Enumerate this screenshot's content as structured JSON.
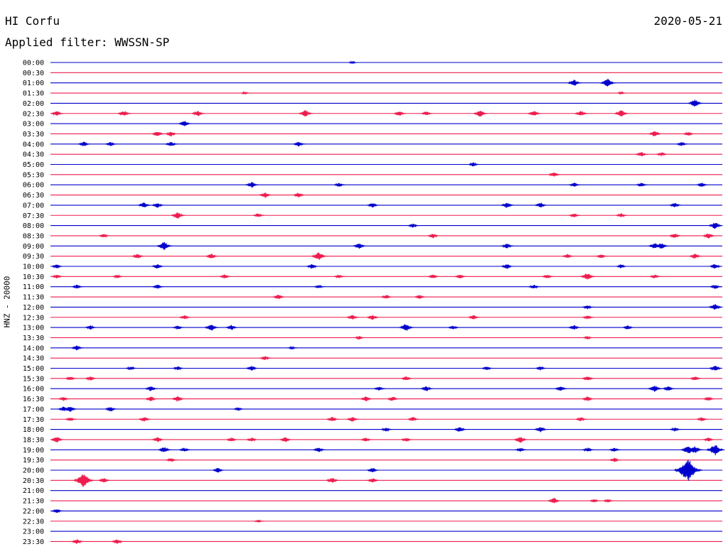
{
  "header": {
    "station": "HI Corfu",
    "date": "2020-05-21",
    "filter_label": "Applied filter:",
    "filter_name": "WWSSN-SP"
  },
  "channel_label": "HNZ - 20000",
  "colors": {
    "even_row": "#0000cc",
    "odd_row": "#ee1c4e"
  },
  "chart_data": {
    "type": "line",
    "title": "",
    "row_times": [
      "00:00",
      "00:30",
      "01:00",
      "01:30",
      "02:00",
      "02:30",
      "03:00",
      "03:30",
      "04:00",
      "04:30",
      "05:00",
      "05:30",
      "06:00",
      "06:30",
      "07:00",
      "07:30",
      "08:00",
      "08:30",
      "09:00",
      "09:30",
      "10:00",
      "10:30",
      "11:00",
      "11:30",
      "12:00",
      "12:30",
      "13:00",
      "13:30",
      "14:00",
      "14:30",
      "15:00",
      "15:30",
      "16:00",
      "16:30",
      "17:00",
      "17:30",
      "18:00",
      "18:30",
      "19:00",
      "19:30",
      "20:00",
      "20:30",
      "21:00",
      "21:30",
      "22:00",
      "22:30",
      "23:00",
      "23:30"
    ],
    "row_minutes": 30,
    "events": [
      {
        "row": 0,
        "x": 0.45,
        "amp": 0.3
      },
      {
        "row": 2,
        "x": 0.78,
        "amp": 0.8
      },
      {
        "row": 2,
        "x": 0.83,
        "amp": 1.0
      },
      {
        "row": 3,
        "x": 0.29,
        "amp": 0.3
      },
      {
        "row": 3,
        "x": 0.85,
        "amp": 0.3
      },
      {
        "row": 4,
        "x": 0.96,
        "amp": 0.9
      },
      {
        "row": 5,
        "x": 0.01,
        "amp": 0.6
      },
      {
        "row": 5,
        "x": 0.11,
        "amp": 0.7
      },
      {
        "row": 5,
        "x": 0.22,
        "amp": 0.7
      },
      {
        "row": 5,
        "x": 0.38,
        "amp": 0.8
      },
      {
        "row": 5,
        "x": 0.52,
        "amp": 0.6
      },
      {
        "row": 5,
        "x": 0.56,
        "amp": 0.5
      },
      {
        "row": 5,
        "x": 0.64,
        "amp": 0.8
      },
      {
        "row": 5,
        "x": 0.72,
        "amp": 0.7
      },
      {
        "row": 5,
        "x": 0.79,
        "amp": 0.7
      },
      {
        "row": 5,
        "x": 0.85,
        "amp": 0.8
      },
      {
        "row": 6,
        "x": 0.2,
        "amp": 0.7
      },
      {
        "row": 7,
        "x": 0.16,
        "amp": 0.7
      },
      {
        "row": 7,
        "x": 0.18,
        "amp": 0.6
      },
      {
        "row": 7,
        "x": 0.9,
        "amp": 0.7
      },
      {
        "row": 7,
        "x": 0.95,
        "amp": 0.5
      },
      {
        "row": 8,
        "x": 0.05,
        "amp": 0.6
      },
      {
        "row": 8,
        "x": 0.09,
        "amp": 0.5
      },
      {
        "row": 8,
        "x": 0.18,
        "amp": 0.6
      },
      {
        "row": 8,
        "x": 0.37,
        "amp": 0.6
      },
      {
        "row": 8,
        "x": 0.94,
        "amp": 0.5
      },
      {
        "row": 9,
        "x": 0.88,
        "amp": 0.6
      },
      {
        "row": 9,
        "x": 0.91,
        "amp": 0.5
      },
      {
        "row": 10,
        "x": 0.63,
        "amp": 0.5
      },
      {
        "row": 11,
        "x": 0.75,
        "amp": 0.6
      },
      {
        "row": 12,
        "x": 0.3,
        "amp": 0.7
      },
      {
        "row": 12,
        "x": 0.43,
        "amp": 0.5
      },
      {
        "row": 12,
        "x": 0.78,
        "amp": 0.5
      },
      {
        "row": 12,
        "x": 0.88,
        "amp": 0.5
      },
      {
        "row": 12,
        "x": 0.97,
        "amp": 0.5
      },
      {
        "row": 13,
        "x": 0.32,
        "amp": 0.7
      },
      {
        "row": 13,
        "x": 0.37,
        "amp": 0.6
      },
      {
        "row": 14,
        "x": 0.14,
        "amp": 0.7
      },
      {
        "row": 14,
        "x": 0.16,
        "amp": 0.6
      },
      {
        "row": 14,
        "x": 0.48,
        "amp": 0.6
      },
      {
        "row": 14,
        "x": 0.68,
        "amp": 0.7
      },
      {
        "row": 14,
        "x": 0.73,
        "amp": 0.6
      },
      {
        "row": 14,
        "x": 0.93,
        "amp": 0.6
      },
      {
        "row": 15,
        "x": 0.19,
        "amp": 0.8
      },
      {
        "row": 15,
        "x": 0.31,
        "amp": 0.5
      },
      {
        "row": 15,
        "x": 0.78,
        "amp": 0.5
      },
      {
        "row": 15,
        "x": 0.85,
        "amp": 0.5
      },
      {
        "row": 16,
        "x": 0.54,
        "amp": 0.5
      },
      {
        "row": 16,
        "x": 0.99,
        "amp": 0.8
      },
      {
        "row": 17,
        "x": 0.08,
        "amp": 0.5
      },
      {
        "row": 17,
        "x": 0.57,
        "amp": 0.6
      },
      {
        "row": 17,
        "x": 0.93,
        "amp": 0.6
      },
      {
        "row": 17,
        "x": 0.98,
        "amp": 0.7
      },
      {
        "row": 18,
        "x": 0.17,
        "amp": 1.0
      },
      {
        "row": 18,
        "x": 0.46,
        "amp": 0.7
      },
      {
        "row": 18,
        "x": 0.68,
        "amp": 0.6
      },
      {
        "row": 18,
        "x": 0.9,
        "amp": 0.7
      },
      {
        "row": 18,
        "x": 0.91,
        "amp": 0.7
      },
      {
        "row": 19,
        "x": 0.13,
        "amp": 0.6
      },
      {
        "row": 19,
        "x": 0.24,
        "amp": 0.6
      },
      {
        "row": 19,
        "x": 0.4,
        "amp": 1.0
      },
      {
        "row": 19,
        "x": 0.77,
        "amp": 0.5
      },
      {
        "row": 19,
        "x": 0.82,
        "amp": 0.5
      },
      {
        "row": 19,
        "x": 0.96,
        "amp": 0.6
      },
      {
        "row": 20,
        "x": 0.01,
        "amp": 0.5
      },
      {
        "row": 20,
        "x": 0.16,
        "amp": 0.6
      },
      {
        "row": 20,
        "x": 0.39,
        "amp": 0.6
      },
      {
        "row": 20,
        "x": 0.68,
        "amp": 0.6
      },
      {
        "row": 20,
        "x": 0.85,
        "amp": 0.5
      },
      {
        "row": 20,
        "x": 0.99,
        "amp": 0.6
      },
      {
        "row": 21,
        "x": 0.01,
        "amp": 0.5
      },
      {
        "row": 21,
        "x": 0.1,
        "amp": 0.4
      },
      {
        "row": 21,
        "x": 0.26,
        "amp": 0.5
      },
      {
        "row": 21,
        "x": 0.43,
        "amp": 0.4
      },
      {
        "row": 21,
        "x": 0.57,
        "amp": 0.5
      },
      {
        "row": 21,
        "x": 0.61,
        "amp": 0.5
      },
      {
        "row": 21,
        "x": 0.74,
        "amp": 0.5
      },
      {
        "row": 21,
        "x": 0.8,
        "amp": 0.9
      },
      {
        "row": 21,
        "x": 0.9,
        "amp": 0.5
      },
      {
        "row": 22,
        "x": 0.04,
        "amp": 0.5
      },
      {
        "row": 22,
        "x": 0.16,
        "amp": 0.5
      },
      {
        "row": 22,
        "x": 0.4,
        "amp": 0.4
      },
      {
        "row": 22,
        "x": 0.72,
        "amp": 0.5
      },
      {
        "row": 22,
        "x": 0.99,
        "amp": 0.5
      },
      {
        "row": 23,
        "x": 0.34,
        "amp": 0.6
      },
      {
        "row": 23,
        "x": 0.5,
        "amp": 0.5
      },
      {
        "row": 23,
        "x": 0.55,
        "amp": 0.5
      },
      {
        "row": 24,
        "x": 0.8,
        "amp": 0.5
      },
      {
        "row": 24,
        "x": 0.99,
        "amp": 0.8
      },
      {
        "row": 25,
        "x": 0.2,
        "amp": 0.5
      },
      {
        "row": 25,
        "x": 0.45,
        "amp": 0.6
      },
      {
        "row": 25,
        "x": 0.48,
        "amp": 0.6
      },
      {
        "row": 25,
        "x": 0.63,
        "amp": 0.5
      },
      {
        "row": 25,
        "x": 0.8,
        "amp": 0.5
      },
      {
        "row": 26,
        "x": 0.06,
        "amp": 0.5
      },
      {
        "row": 26,
        "x": 0.19,
        "amp": 0.5
      },
      {
        "row": 26,
        "x": 0.24,
        "amp": 0.8
      },
      {
        "row": 26,
        "x": 0.27,
        "amp": 0.6
      },
      {
        "row": 26,
        "x": 0.53,
        "amp": 0.9
      },
      {
        "row": 26,
        "x": 0.6,
        "amp": 0.5
      },
      {
        "row": 26,
        "x": 0.78,
        "amp": 0.6
      },
      {
        "row": 26,
        "x": 0.86,
        "amp": 0.5
      },
      {
        "row": 27,
        "x": 0.46,
        "amp": 0.4
      },
      {
        "row": 27,
        "x": 0.8,
        "amp": 0.4
      },
      {
        "row": 28,
        "x": 0.04,
        "amp": 0.6
      },
      {
        "row": 28,
        "x": 0.36,
        "amp": 0.3
      },
      {
        "row": 29,
        "x": 0.32,
        "amp": 0.5
      },
      {
        "row": 30,
        "x": 0.12,
        "amp": 0.5
      },
      {
        "row": 30,
        "x": 0.19,
        "amp": 0.5
      },
      {
        "row": 30,
        "x": 0.3,
        "amp": 0.6
      },
      {
        "row": 30,
        "x": 0.65,
        "amp": 0.5
      },
      {
        "row": 30,
        "x": 0.73,
        "amp": 0.5
      },
      {
        "row": 30,
        "x": 0.99,
        "amp": 0.7
      },
      {
        "row": 31,
        "x": 0.03,
        "amp": 0.5
      },
      {
        "row": 31,
        "x": 0.06,
        "amp": 0.5
      },
      {
        "row": 31,
        "x": 0.53,
        "amp": 0.5
      },
      {
        "row": 31,
        "x": 0.8,
        "amp": 0.6
      },
      {
        "row": 31,
        "x": 0.96,
        "amp": 0.5
      },
      {
        "row": 32,
        "x": 0.15,
        "amp": 0.6
      },
      {
        "row": 32,
        "x": 0.49,
        "amp": 0.5
      },
      {
        "row": 32,
        "x": 0.56,
        "amp": 0.6
      },
      {
        "row": 32,
        "x": 0.76,
        "amp": 0.6
      },
      {
        "row": 32,
        "x": 0.9,
        "amp": 0.8
      },
      {
        "row": 32,
        "x": 0.92,
        "amp": 0.6
      },
      {
        "row": 33,
        "x": 0.02,
        "amp": 0.5
      },
      {
        "row": 33,
        "x": 0.15,
        "amp": 0.6
      },
      {
        "row": 33,
        "x": 0.19,
        "amp": 0.7
      },
      {
        "row": 33,
        "x": 0.47,
        "amp": 0.6
      },
      {
        "row": 33,
        "x": 0.51,
        "amp": 0.6
      },
      {
        "row": 33,
        "x": 0.8,
        "amp": 0.6
      },
      {
        "row": 33,
        "x": 0.98,
        "amp": 0.5
      },
      {
        "row": 34,
        "x": 0.02,
        "amp": 0.6
      },
      {
        "row": 34,
        "x": 0.03,
        "amp": 0.7
      },
      {
        "row": 34,
        "x": 0.09,
        "amp": 0.6
      },
      {
        "row": 34,
        "x": 0.28,
        "amp": 0.4
      },
      {
        "row": 35,
        "x": 0.03,
        "amp": 0.5
      },
      {
        "row": 35,
        "x": 0.14,
        "amp": 0.6
      },
      {
        "row": 35,
        "x": 0.42,
        "amp": 0.6
      },
      {
        "row": 35,
        "x": 0.45,
        "amp": 0.6
      },
      {
        "row": 35,
        "x": 0.54,
        "amp": 0.5
      },
      {
        "row": 35,
        "x": 0.79,
        "amp": 0.5
      },
      {
        "row": 35,
        "x": 0.97,
        "amp": 0.5
      },
      {
        "row": 36,
        "x": 0.5,
        "amp": 0.5
      },
      {
        "row": 36,
        "x": 0.61,
        "amp": 0.7
      },
      {
        "row": 36,
        "x": 0.73,
        "amp": 0.7
      },
      {
        "row": 36,
        "x": 0.93,
        "amp": 0.5
      },
      {
        "row": 37,
        "x": 0.01,
        "amp": 0.7
      },
      {
        "row": 37,
        "x": 0.16,
        "amp": 0.6
      },
      {
        "row": 37,
        "x": 0.27,
        "amp": 0.5
      },
      {
        "row": 37,
        "x": 0.3,
        "amp": 0.5
      },
      {
        "row": 37,
        "x": 0.35,
        "amp": 0.6
      },
      {
        "row": 37,
        "x": 0.47,
        "amp": 0.5
      },
      {
        "row": 37,
        "x": 0.53,
        "amp": 0.5
      },
      {
        "row": 37,
        "x": 0.7,
        "amp": 0.8
      },
      {
        "row": 37,
        "x": 0.98,
        "amp": 0.5
      },
      {
        "row": 38,
        "x": 0.17,
        "amp": 0.7
      },
      {
        "row": 38,
        "x": 0.2,
        "amp": 0.5
      },
      {
        "row": 38,
        "x": 0.4,
        "amp": 0.6
      },
      {
        "row": 38,
        "x": 0.7,
        "amp": 0.5
      },
      {
        "row": 38,
        "x": 0.8,
        "amp": 0.5
      },
      {
        "row": 38,
        "x": 0.84,
        "amp": 0.5
      },
      {
        "row": 38,
        "x": 0.95,
        "amp": 1.0
      },
      {
        "row": 38,
        "x": 0.96,
        "amp": 0.9
      },
      {
        "row": 38,
        "x": 0.99,
        "amp": 1.3
      },
      {
        "row": 39,
        "x": 0.18,
        "amp": 0.5
      },
      {
        "row": 39,
        "x": 0.84,
        "amp": 0.5
      },
      {
        "row": 40,
        "x": 0.25,
        "amp": 0.6
      },
      {
        "row": 40,
        "x": 0.48,
        "amp": 0.6
      },
      {
        "row": 40,
        "x": 0.95,
        "amp": 2.5
      },
      {
        "row": 41,
        "x": 0.05,
        "amp": 1.6
      },
      {
        "row": 41,
        "x": 0.08,
        "amp": 0.6
      },
      {
        "row": 41,
        "x": 0.42,
        "amp": 0.7
      },
      {
        "row": 41,
        "x": 0.48,
        "amp": 0.6
      },
      {
        "row": 43,
        "x": 0.75,
        "amp": 0.7
      },
      {
        "row": 43,
        "x": 0.81,
        "amp": 0.4
      },
      {
        "row": 43,
        "x": 0.83,
        "amp": 0.4
      },
      {
        "row": 44,
        "x": 0.01,
        "amp": 0.5
      },
      {
        "row": 45,
        "x": 0.31,
        "amp": 0.3
      },
      {
        "row": 47,
        "x": 0.04,
        "amp": 0.6
      },
      {
        "row": 47,
        "x": 0.1,
        "amp": 0.6
      }
    ]
  }
}
